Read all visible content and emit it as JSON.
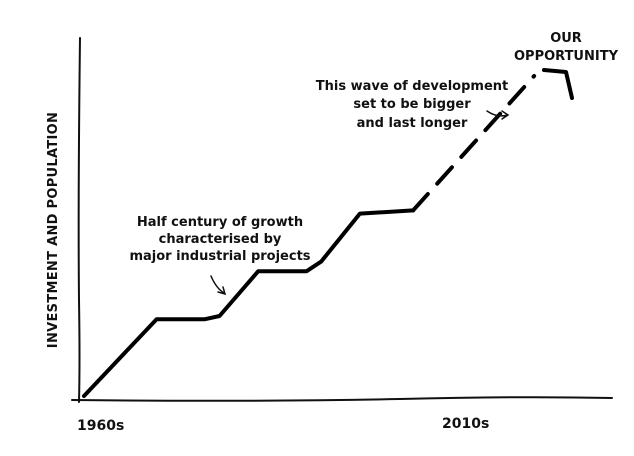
{
  "chart_data": {
    "type": "line",
    "title": "",
    "xlabel": "",
    "ylabel": "INVESTMENT AND POPULATION",
    "tick_labels": [
      "1960s",
      "2010s"
    ],
    "grid": false,
    "legend": "none",
    "axis_color": "#111111",
    "line_color": "#000000",
    "series": [
      {
        "style": "solid",
        "points": [
          [
            0,
            0
          ],
          [
            0.15,
            0.24
          ],
          [
            0.25,
            0.24
          ],
          [
            0.28,
            0.25
          ],
          [
            0.36,
            0.39
          ],
          [
            0.46,
            0.39
          ],
          [
            0.49,
            0.42
          ],
          [
            0.57,
            0.57
          ],
          [
            0.68,
            0.58
          ]
        ]
      },
      {
        "style": "dashed",
        "points": [
          [
            0.68,
            0.58
          ],
          [
            0.93,
            1.0
          ]
        ]
      }
    ],
    "annotations": [
      {
        "name": "half-century",
        "lines": [
          "Half century of growth",
          "characterised by",
          "major industrial projects"
        ]
      },
      {
        "name": "wave",
        "lines": [
          "This wave of development",
          "set to be bigger",
          "and last longer"
        ]
      },
      {
        "name": "opportunity",
        "lines": [
          "OUR",
          "OPPORTUNITY"
        ]
      }
    ]
  }
}
